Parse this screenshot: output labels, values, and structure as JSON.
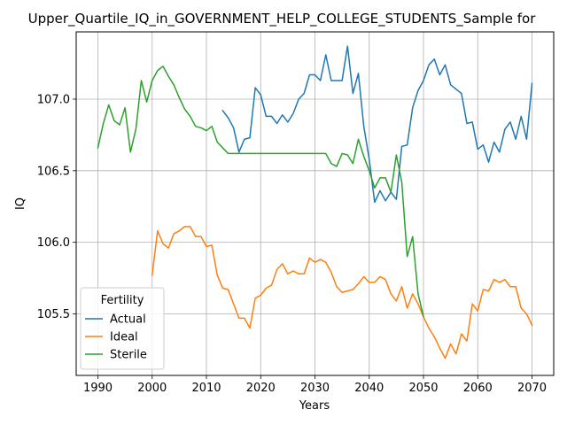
{
  "chart_data": {
    "type": "line",
    "title": "Upper_Quartile_IQ_in_GOVERNMENT_HELP_COLLEGE_STUDENTS_Sample for",
    "xlabel": "Years",
    "ylabel": "IQ",
    "xlim": [
      1986,
      2074
    ],
    "ylim": [
      105.07,
      107.47
    ],
    "xticks": [
      1990,
      2000,
      2010,
      2020,
      2030,
      2040,
      2050,
      2060,
      2070
    ],
    "yticks": [
      105.5,
      106.0,
      106.5,
      107.0
    ],
    "ytick_labels": [
      "105.5",
      "106.0",
      "106.5",
      "107.0"
    ],
    "grid": true,
    "legend": {
      "title": "Fertility",
      "position": "lower-left"
    },
    "series": [
      {
        "name": "Actual",
        "color": "#1f77b4",
        "x": [
          2013,
          2014,
          2015,
          2016,
          2017,
          2018,
          2019,
          2020,
          2021,
          2022,
          2023,
          2024,
          2025,
          2026,
          2027,
          2028,
          2029,
          2030,
          2031,
          2032,
          2033,
          2034,
          2035,
          2036,
          2037,
          2038,
          2039,
          2040,
          2041,
          2042,
          2043,
          2044,
          2045,
          2046,
          2047,
          2048,
          2049,
          2050,
          2051,
          2052,
          2053,
          2054,
          2055,
          2056,
          2057,
          2058,
          2059,
          2060,
          2061,
          2062,
          2063,
          2064,
          2065,
          2066,
          2067,
          2068,
          2069,
          2070
        ],
        "y": [
          106.92,
          106.87,
          106.8,
          106.63,
          106.72,
          106.73,
          107.08,
          107.03,
          106.88,
          106.88,
          106.83,
          106.89,
          106.84,
          106.9,
          107.0,
          107.04,
          107.17,
          107.17,
          107.13,
          107.31,
          107.13,
          107.13,
          107.13,
          107.37,
          107.04,
          107.18,
          106.81,
          106.58,
          106.28,
          106.36,
          106.29,
          106.35,
          106.3,
          106.67,
          106.68,
          106.94,
          107.06,
          107.13,
          107.24,
          107.28,
          107.17,
          107.24,
          107.1,
          107.07,
          107.04,
          106.83,
          106.84,
          106.65,
          106.68,
          106.56,
          106.7,
          106.63,
          106.79,
          106.84,
          106.72,
          106.88,
          106.72,
          107.11
        ]
      },
      {
        "name": "Ideal",
        "color": "#ff7f0e",
        "x": [
          2000,
          2001,
          2002,
          2003,
          2004,
          2005,
          2006,
          2007,
          2008,
          2009,
          2010,
          2011,
          2012,
          2013,
          2014,
          2015,
          2016,
          2017,
          2018,
          2019,
          2020,
          2021,
          2022,
          2023,
          2024,
          2025,
          2026,
          2027,
          2028,
          2029,
          2030,
          2031,
          2032,
          2033,
          2034,
          2035,
          2036,
          2037,
          2038,
          2039,
          2040,
          2041,
          2042,
          2043,
          2044,
          2045,
          2046,
          2047,
          2048,
          2049,
          2050,
          2051,
          2052,
          2053,
          2054,
          2055,
          2056,
          2057,
          2058,
          2059,
          2060,
          2061,
          2062,
          2063,
          2064,
          2065,
          2066,
          2067,
          2068,
          2069,
          2070
        ],
        "y": [
          105.77,
          106.08,
          105.99,
          105.96,
          106.06,
          106.08,
          106.11,
          106.11,
          106.04,
          106.04,
          105.97,
          105.98,
          105.77,
          105.68,
          105.67,
          105.57,
          105.47,
          105.47,
          105.4,
          105.61,
          105.63,
          105.68,
          105.7,
          105.81,
          105.85,
          105.78,
          105.8,
          105.78,
          105.78,
          105.89,
          105.86,
          105.88,
          105.86,
          105.79,
          105.69,
          105.65,
          105.66,
          105.67,
          105.71,
          105.76,
          105.72,
          105.72,
          105.76,
          105.74,
          105.64,
          105.59,
          105.69,
          105.54,
          105.64,
          105.57,
          105.48,
          105.4,
          105.34,
          105.26,
          105.19,
          105.29,
          105.22,
          105.36,
          105.31,
          105.57,
          105.52,
          105.67,
          105.66,
          105.74,
          105.72,
          105.74,
          105.69,
          105.69,
          105.54,
          105.5,
          105.42
        ]
      },
      {
        "name": "Sterile",
        "color": "#2ca02c",
        "x": [
          1990,
          1991,
          1992,
          1993,
          1994,
          1995,
          1996,
          1997,
          1998,
          1999,
          2000,
          2001,
          2002,
          2003,
          2004,
          2005,
          2006,
          2007,
          2008,
          2009,
          2010,
          2011,
          2012,
          2013,
          2014,
          2015,
          2016,
          2017,
          2018,
          2019,
          2020,
          2021,
          2022,
          2023,
          2024,
          2025,
          2026,
          2027,
          2028,
          2029,
          2030,
          2031,
          2032,
          2033,
          2034,
          2035,
          2036,
          2037,
          2038,
          2039,
          2040,
          2041,
          2042,
          2043,
          2044,
          2045,
          2046,
          2047,
          2048,
          2049,
          2050
        ],
        "y": [
          106.66,
          106.83,
          106.96,
          106.85,
          106.82,
          106.94,
          106.63,
          106.79,
          107.13,
          106.98,
          107.13,
          107.2,
          107.23,
          107.16,
          107.1,
          107.01,
          106.93,
          106.88,
          106.81,
          106.8,
          106.78,
          106.81,
          106.7,
          106.66,
          106.62,
          106.62,
          106.62,
          106.62,
          106.62,
          106.62,
          106.62,
          106.62,
          106.62,
          106.62,
          106.62,
          106.62,
          106.62,
          106.62,
          106.62,
          106.62,
          106.62,
          106.62,
          106.62,
          106.55,
          106.53,
          106.62,
          106.61,
          106.55,
          106.72,
          106.6,
          106.5,
          106.38,
          106.45,
          106.45,
          106.35,
          106.61,
          106.42,
          105.9,
          106.04,
          105.64,
          105.48
        ]
      }
    ]
  }
}
